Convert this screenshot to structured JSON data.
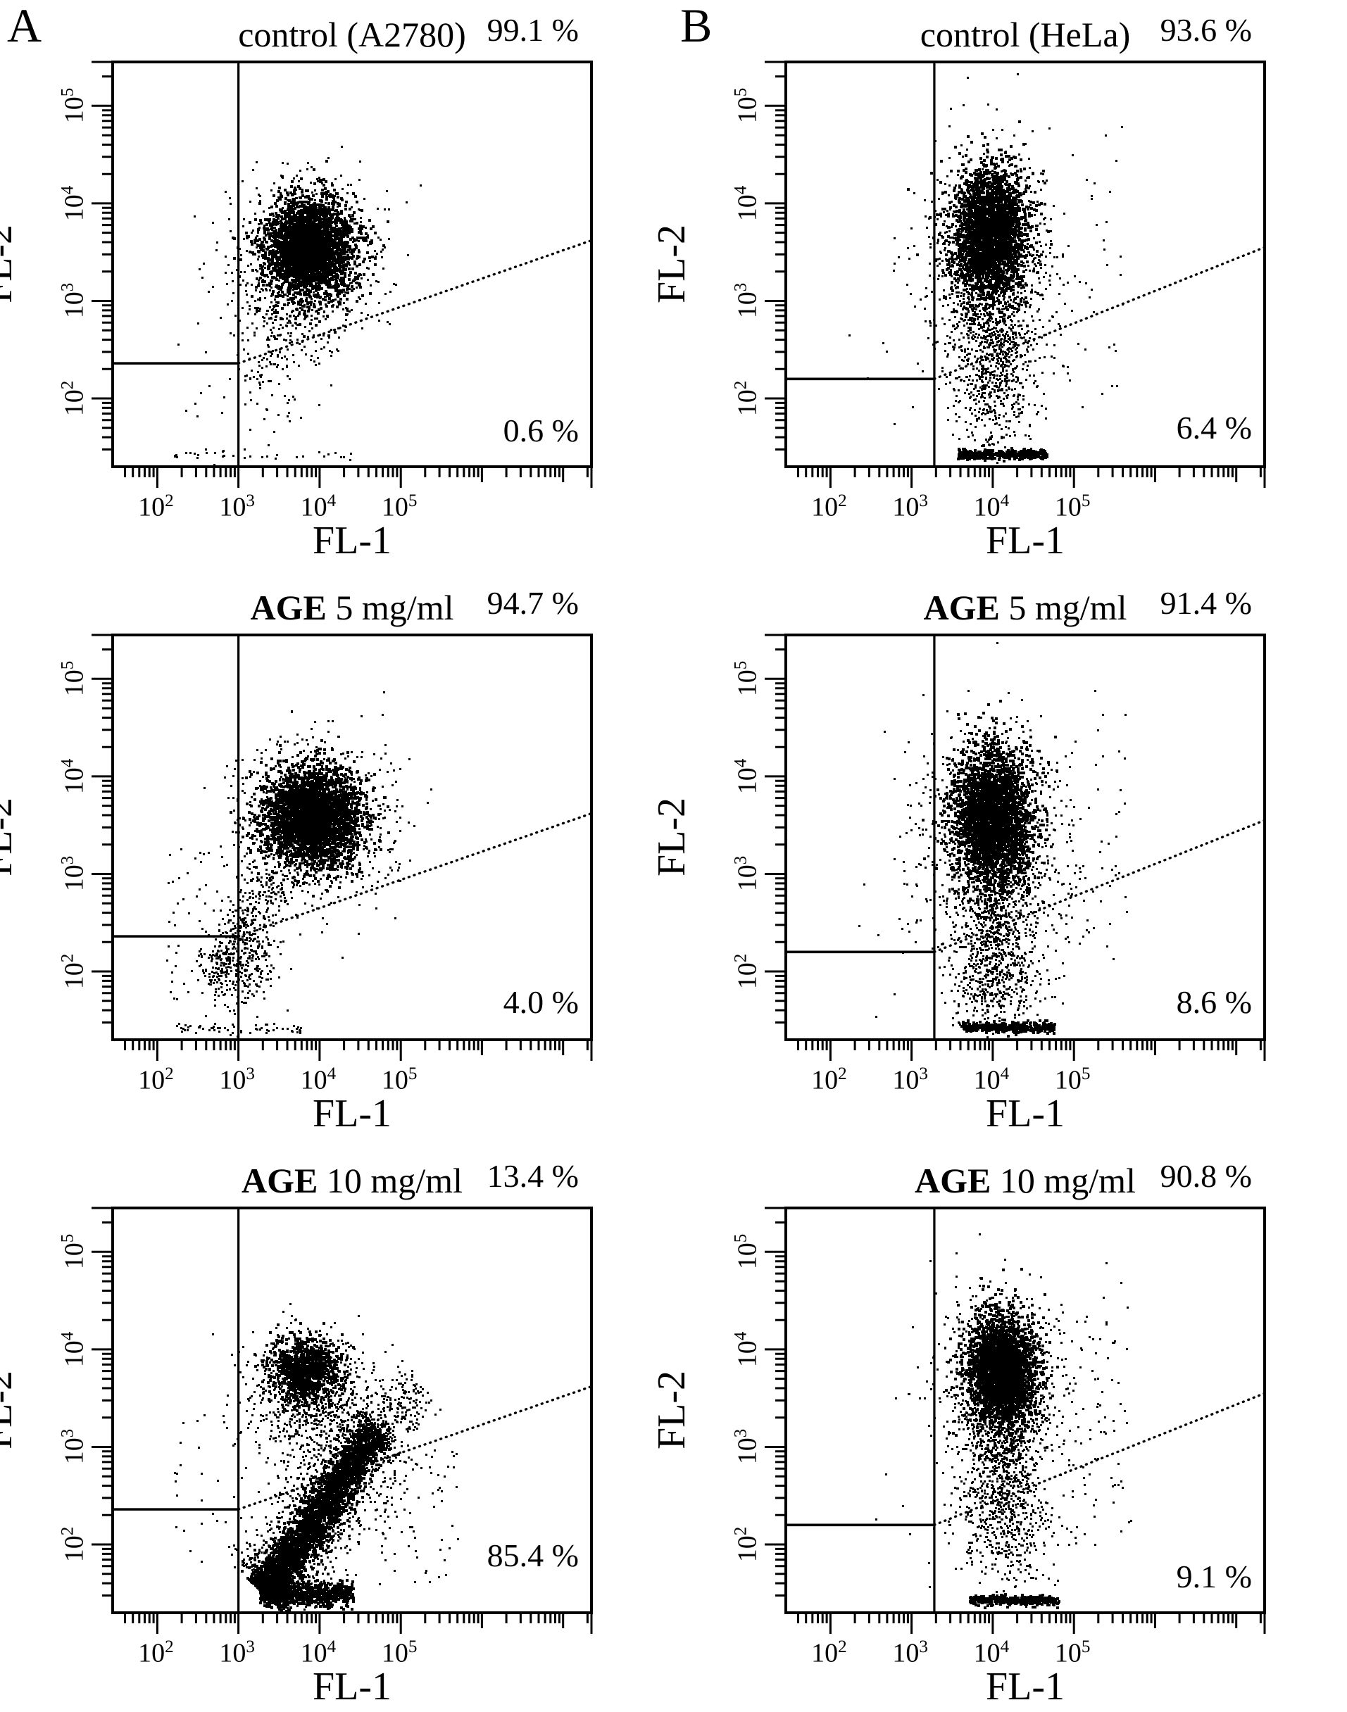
{
  "chart_data": {
    "type": "scatter",
    "letters": [
      "A",
      "B"
    ],
    "xlabel": "FL-1",
    "ylabel": "FL-2",
    "tick_base": "10",
    "ink": "#000000",
    "paper": "#ffffff",
    "axis": {
      "x": {
        "min": 1.45,
        "max": 7.35,
        "label_exps": [
          "2",
          "3",
          "4",
          "5"
        ]
      },
      "y": {
        "min": 1.3,
        "max": 5.45,
        "label_exps": [
          "2",
          "3",
          "4",
          "5"
        ]
      }
    },
    "panels": [
      {
        "title_bold": "",
        "title_rest": "control (A2780)",
        "upper_pct": "99.1 %",
        "lower_pct": "0.6 %",
        "lower_pct_bottom": 28,
        "seed": 11,
        "gate": {
          "vx": 3.0,
          "hy": 2.36,
          "diag_end_y": 3.62
        },
        "clusters": [
          {
            "kind": "gauss",
            "cx": 3.85,
            "cy": 3.55,
            "sx": 0.27,
            "sy": 0.25,
            "n": 3000,
            "s": 4
          },
          {
            "kind": "gauss",
            "cx": 3.8,
            "cy": 3.45,
            "sx": 0.45,
            "sy": 0.42,
            "n": 750,
            "s": 3
          },
          {
            "kind": "gauss",
            "cx": 3.5,
            "cy": 2.8,
            "sx": 0.24,
            "sy": 0.3,
            "n": 150,
            "s": 3
          },
          {
            "kind": "gauss",
            "cx": 3.35,
            "cy": 2.2,
            "sx": 0.2,
            "sy": 0.3,
            "n": 55,
            "s": 3
          },
          {
            "kind": "uniform",
            "x1": 2.2,
            "x2": 2.95,
            "y1": 1.8,
            "y2": 3.2,
            "n": 12,
            "s": 3
          },
          {
            "kind": "hline",
            "y": 1.42,
            "sy": 0.03,
            "x1": 2.2,
            "x2": 4.4,
            "n": 35,
            "s": 3
          }
        ]
      },
      {
        "title_bold": "",
        "title_rest": "control (HeLa)",
        "upper_pct": "93.6 %",
        "lower_pct": "6.4 %",
        "lower_pct_bottom": 32,
        "seed": 22,
        "gate": {
          "vx": 3.28,
          "hy": 2.2,
          "diag_end_y": 3.55
        },
        "clusters": [
          {
            "kind": "gauss",
            "cx": 3.95,
            "cy": 3.7,
            "sx": 0.22,
            "sy": 0.32,
            "n": 2800,
            "s": 4
          },
          {
            "kind": "gauss",
            "cx": 3.95,
            "cy": 3.4,
            "sx": 0.4,
            "sy": 0.55,
            "n": 950,
            "s": 3
          },
          {
            "kind": "gauss",
            "cx": 3.98,
            "cy": 2.6,
            "sx": 0.24,
            "sy": 0.38,
            "n": 520,
            "s": 3
          },
          {
            "kind": "gauss",
            "cx": 4.0,
            "cy": 2.0,
            "sx": 0.25,
            "sy": 0.28,
            "n": 210,
            "s": 3
          },
          {
            "kind": "hline",
            "y": 1.44,
            "sy": 0.025,
            "x1": 3.55,
            "x2": 4.65,
            "n": 380,
            "s": 4
          },
          {
            "kind": "uniform",
            "x1": 4.6,
            "x2": 5.6,
            "y1": 1.9,
            "y2": 4.3,
            "n": 45,
            "s": 3
          },
          {
            "kind": "uniform",
            "x1": 5.2,
            "x2": 5.6,
            "y1": 4.4,
            "y2": 4.8,
            "n": 3,
            "s": 3
          },
          {
            "kind": "uniform",
            "x1": 2.2,
            "x2": 3.1,
            "y1": 1.7,
            "y2": 3.0,
            "n": 6,
            "s": 3
          }
        ]
      },
      {
        "title_bold": "AGE",
        "title_rest": " 5 mg/ml",
        "upper_pct": "94.7 %",
        "lower_pct": "4.0 %",
        "lower_pct_bottom": 30,
        "seed": 33,
        "gate": {
          "vx": 3.0,
          "hy": 2.36,
          "diag_end_y": 3.62
        },
        "clusters": [
          {
            "kind": "gauss",
            "cx": 3.9,
            "cy": 3.6,
            "sx": 0.29,
            "sy": 0.24,
            "n": 3200,
            "s": 4
          },
          {
            "kind": "gauss",
            "cx": 3.9,
            "cy": 3.5,
            "sx": 0.5,
            "sy": 0.42,
            "n": 850,
            "s": 3
          },
          {
            "kind": "line",
            "x1": 2.6,
            "y1": 1.9,
            "x2": 3.45,
            "y2": 2.95,
            "perp": 0.14,
            "n": 300,
            "pow": 1.0,
            "s": 3
          },
          {
            "kind": "gauss",
            "cx": 3.05,
            "cy": 2.1,
            "sx": 0.2,
            "sy": 0.25,
            "n": 260,
            "s": 3
          },
          {
            "kind": "uniform",
            "x1": 2.1,
            "x2": 2.95,
            "y1": 1.7,
            "y2": 3.3,
            "n": 45,
            "s": 3
          },
          {
            "kind": "hline",
            "y": 1.42,
            "sy": 0.03,
            "x1": 2.2,
            "x2": 3.8,
            "n": 60,
            "s": 3
          }
        ]
      },
      {
        "title_bold": "AGE",
        "title_rest": " 5 mg/ml",
        "upper_pct": "91.4 %",
        "lower_pct": "8.6 %",
        "lower_pct_bottom": 30,
        "seed": 44,
        "gate": {
          "vx": 3.28,
          "hy": 2.2,
          "diag_end_y": 3.55
        },
        "clusters": [
          {
            "kind": "gauss",
            "cx": 3.98,
            "cy": 3.6,
            "sx": 0.24,
            "sy": 0.35,
            "n": 3000,
            "s": 4
          },
          {
            "kind": "gauss",
            "cx": 3.98,
            "cy": 3.3,
            "sx": 0.45,
            "sy": 0.58,
            "n": 1000,
            "s": 3
          },
          {
            "kind": "gauss",
            "cx": 4.0,
            "cy": 2.4,
            "sx": 0.25,
            "sy": 0.4,
            "n": 560,
            "s": 3
          },
          {
            "kind": "gauss",
            "cx": 4.05,
            "cy": 1.85,
            "sx": 0.28,
            "sy": 0.24,
            "n": 260,
            "s": 3
          },
          {
            "kind": "hline",
            "y": 1.44,
            "sy": 0.025,
            "x1": 3.6,
            "x2": 4.75,
            "n": 380,
            "s": 4
          },
          {
            "kind": "uniform",
            "x1": 4.7,
            "x2": 5.7,
            "y1": 2.0,
            "y2": 4.4,
            "n": 60,
            "s": 3
          },
          {
            "kind": "uniform",
            "x1": 5.2,
            "x2": 5.7,
            "y1": 4.5,
            "y2": 4.9,
            "n": 3,
            "s": 3
          },
          {
            "kind": "uniform",
            "x1": 2.3,
            "x2": 3.1,
            "y1": 1.8,
            "y2": 2.6,
            "n": 3,
            "s": 3
          }
        ]
      },
      {
        "title_bold": "AGE",
        "title_rest": " 10 mg/ml",
        "upper_pct": "13.4 %",
        "lower_pct": "85.4 %",
        "lower_pct_bottom": 58,
        "seed": 55,
        "gate": {
          "vx": 3.0,
          "hy": 2.36,
          "diag_end_y": 3.62
        },
        "clusters": [
          {
            "kind": "gauss",
            "cx": 3.8,
            "cy": 3.8,
            "sx": 0.21,
            "sy": 0.16,
            "n": 1000,
            "s": 4
          },
          {
            "kind": "gauss",
            "cx": 3.85,
            "cy": 3.72,
            "sx": 0.36,
            "sy": 0.28,
            "n": 360,
            "s": 3
          },
          {
            "kind": "gauss",
            "cx": 4.0,
            "cy": 3.3,
            "sx": 0.45,
            "sy": 0.3,
            "n": 420,
            "s": 3
          },
          {
            "kind": "line",
            "x1": 3.3,
            "y1": 1.5,
            "x2": 4.7,
            "y2": 3.2,
            "perp": 0.12,
            "n": 3200,
            "pow": 1.35,
            "s": 4
          },
          {
            "kind": "line",
            "x1": 3.32,
            "y1": 1.55,
            "x2": 4.75,
            "y2": 3.25,
            "perp": 0.3,
            "n": 1000,
            "pow": 1.2,
            "s": 3
          },
          {
            "kind": "line",
            "x1": 4.6,
            "y1": 3.1,
            "x2": 5.25,
            "y2": 3.65,
            "perp": 0.16,
            "n": 220,
            "pow": 1.0,
            "s": 3
          },
          {
            "kind": "hline",
            "y": 1.5,
            "sy": 0.06,
            "x1": 3.25,
            "x2": 4.4,
            "n": 700,
            "s": 4
          },
          {
            "kind": "uniform",
            "x1": 4.7,
            "x2": 5.7,
            "y1": 1.6,
            "y2": 3.0,
            "n": 70,
            "s": 3
          },
          {
            "kind": "uniform",
            "x1": 2.1,
            "x2": 2.95,
            "y1": 1.7,
            "y2": 3.4,
            "n": 25,
            "s": 3
          }
        ]
      },
      {
        "title_bold": "AGE",
        "title_rest": " 10 mg/ml",
        "upper_pct": "90.8 %",
        "lower_pct": "9.1 %",
        "lower_pct_bottom": 28,
        "seed": 66,
        "gate": {
          "vx": 3.28,
          "hy": 2.2,
          "diag_end_y": 3.55
        },
        "clusters": [
          {
            "kind": "gauss",
            "cx": 4.1,
            "cy": 3.8,
            "sx": 0.2,
            "sy": 0.28,
            "n": 2800,
            "s": 4
          },
          {
            "kind": "gauss",
            "cx": 4.1,
            "cy": 3.6,
            "sx": 0.38,
            "sy": 0.5,
            "n": 900,
            "s": 3
          },
          {
            "kind": "gauss",
            "cx": 4.1,
            "cy": 2.9,
            "sx": 0.22,
            "sy": 0.45,
            "n": 620,
            "s": 3
          },
          {
            "kind": "gauss",
            "cx": 4.15,
            "cy": 2.2,
            "sx": 0.3,
            "sy": 0.35,
            "n": 360,
            "s": 3
          },
          {
            "kind": "hline",
            "y": 1.44,
            "sy": 0.025,
            "x1": 3.7,
            "x2": 4.8,
            "n": 320,
            "s": 4
          },
          {
            "kind": "uniform",
            "x1": 4.8,
            "x2": 5.7,
            "y1": 2.0,
            "y2": 4.3,
            "n": 80,
            "s": 3
          },
          {
            "kind": "uniform",
            "x1": 5.3,
            "x2": 5.7,
            "y1": 4.4,
            "y2": 4.9,
            "n": 4,
            "s": 3
          },
          {
            "kind": "uniform",
            "x1": 2.3,
            "x2": 3.15,
            "y1": 1.8,
            "y2": 2.8,
            "n": 4,
            "s": 3
          }
        ]
      }
    ]
  }
}
